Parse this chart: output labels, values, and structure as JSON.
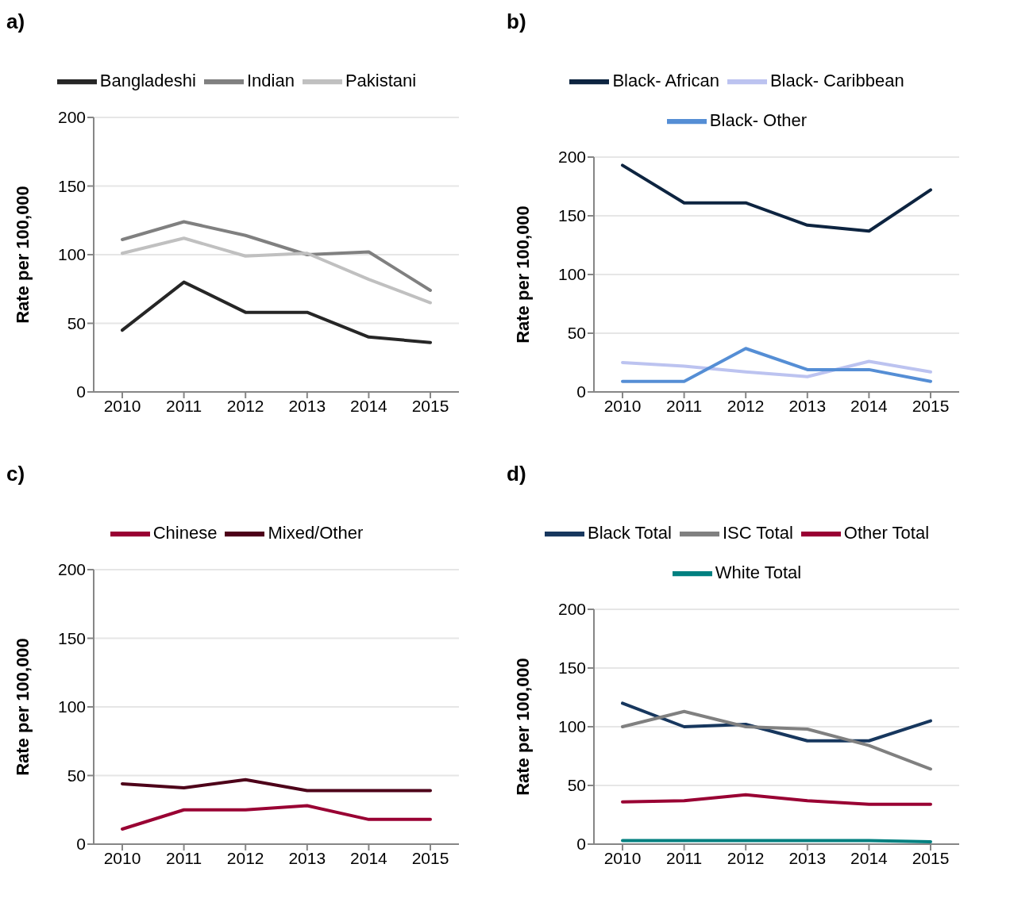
{
  "chart_data": [
    {
      "type": "line",
      "title": "a)",
      "ylabel": "Rate per 100,000",
      "categories": [
        "2010",
        "2011",
        "2012",
        "2013",
        "2014",
        "2015"
      ],
      "ylim": [
        0,
        200
      ],
      "yticks": [
        0,
        50,
        100,
        150,
        200
      ],
      "grid": "y",
      "legend": "top",
      "marker": "none",
      "line_style": "solid",
      "series": [
        {
          "name": "Bangladeshi",
          "color": "#262626",
          "values": [
            45,
            80,
            58,
            58,
            40,
            36
          ]
        },
        {
          "name": "Indian",
          "color": "#808080",
          "values": [
            111,
            124,
            114,
            100,
            102,
            74
          ]
        },
        {
          "name": "Pakistani",
          "color": "#c0c0c0",
          "values": [
            101,
            112,
            99,
            101,
            82,
            65
          ]
        }
      ]
    },
    {
      "type": "line",
      "title": "b)",
      "ylabel": "Rate per 100,000",
      "categories": [
        "2010",
        "2011",
        "2012",
        "2013",
        "2014",
        "2015"
      ],
      "ylim": [
        0,
        200
      ],
      "yticks": [
        0,
        50,
        100,
        150,
        200
      ],
      "grid": "y",
      "legend": "top",
      "marker": "none",
      "line_style": "solid",
      "series": [
        {
          "name": "Black- African",
          "color": "#0d2440",
          "values": [
            193,
            161,
            161,
            142,
            137,
            172
          ]
        },
        {
          "name": "Black- Caribbean",
          "color": "#bcc3f0",
          "values": [
            25,
            22,
            17,
            13,
            26,
            17
          ]
        },
        {
          "name": "Black- Other",
          "color": "#558ed5",
          "values": [
            9,
            9,
            37,
            19,
            19,
            9
          ]
        }
      ]
    },
    {
      "type": "line",
      "title": "c)",
      "ylabel": "Rate per 100,000",
      "categories": [
        "2010",
        "2011",
        "2012",
        "2013",
        "2014",
        "2015"
      ],
      "ylim": [
        0,
        200
      ],
      "yticks": [
        0,
        50,
        100,
        150,
        200
      ],
      "grid": "y",
      "legend": "top",
      "marker": "none",
      "line_style": "solid",
      "series": [
        {
          "name": "Chinese",
          "color": "#990033",
          "values": [
            11,
            25,
            25,
            28,
            18,
            18
          ]
        },
        {
          "name": "Mixed/Other",
          "color": "#4d0019",
          "values": [
            44,
            41,
            47,
            39,
            39,
            39
          ]
        }
      ]
    },
    {
      "type": "line",
      "title": "d)",
      "ylabel": "Rate per 100,000",
      "categories": [
        "2010",
        "2011",
        "2012",
        "2013",
        "2014",
        "2015"
      ],
      "ylim": [
        0,
        200
      ],
      "yticks": [
        0,
        50,
        100,
        150,
        200
      ],
      "grid": "y",
      "legend": "top",
      "marker": "none",
      "line_style": "solid",
      "series": [
        {
          "name": "Black Total",
          "color": "#17375e",
          "values": [
            120,
            100,
            102,
            88,
            88,
            105
          ]
        },
        {
          "name": "ISC Total",
          "color": "#808080",
          "values": [
            100,
            113,
            100,
            98,
            84,
            64
          ]
        },
        {
          "name": "Other Total",
          "color": "#990033",
          "values": [
            36,
            37,
            42,
            37,
            34,
            34
          ]
        },
        {
          "name": "White Total",
          "color": "#008080",
          "values": [
            3,
            3,
            3,
            3,
            3,
            2
          ]
        }
      ]
    }
  ]
}
